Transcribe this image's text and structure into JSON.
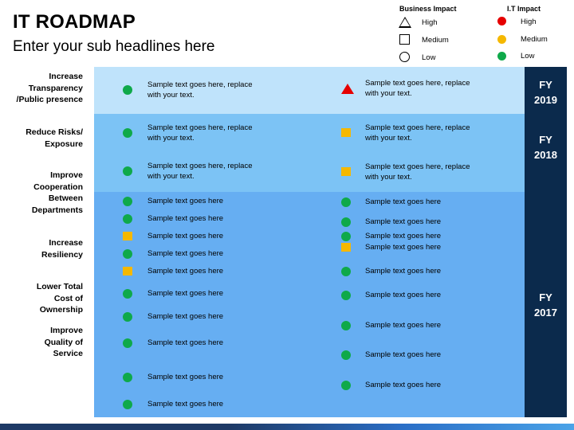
{
  "header": {
    "title": "IT ROADMAP",
    "subtitle": "Enter your sub headlines here"
  },
  "legend": {
    "business_title": "Business Impact",
    "it_title": "I.T Impact",
    "business_items": [
      {
        "label": "High",
        "icon": "triangle-outline-icon"
      },
      {
        "label": "Medium",
        "icon": "square-outline-icon"
      },
      {
        "label": "Low",
        "icon": "circle-outline-icon"
      }
    ],
    "it_items": [
      {
        "label": "High",
        "color": "#e60000"
      },
      {
        "label": "Medium",
        "color": "#f5b800"
      },
      {
        "label": "Low",
        "color": "#0fa94a"
      }
    ]
  },
  "colors": {
    "band_top": "#bfe3fb",
    "band_mid": "#7cc3f5",
    "band_low": "#66aef2",
    "fy_column": "#0b2a4c",
    "high": "#e60000",
    "medium": "#f5b800",
    "low": "#0fa94a"
  },
  "fiscal_years": [
    "FY\n2019",
    "FY\n2018",
    "FY\n2017"
  ],
  "fy_labels": [
    {
      "fy": "FY",
      "year": "2019"
    },
    {
      "fy": "FY",
      "year": "2018"
    },
    {
      "fy": "FY",
      "year": "2017"
    }
  ],
  "categories": [
    "Increase\nTransparency\n/Public presence",
    "Reduce Risks/\nExposure",
    "Improve\nCooperation\nBetween\nDepartments",
    "Increase\nResiliency",
    "Lower Total\nCost of\nOwnership",
    "Improve\nQuality of\nService"
  ],
  "left_items": [
    {
      "text": "Sample text goes here, replace with your text.",
      "shape": "circle"
    },
    {
      "text": "Sample text goes here, replace with your text.",
      "shape": "circle"
    },
    {
      "text": "Sample text goes here, replace with your text.",
      "shape": "circle"
    },
    {
      "text": "Sample text goes here",
      "shape": "circle"
    },
    {
      "text": "Sample text goes here",
      "shape": "circle"
    },
    {
      "text": "Sample text goes here",
      "shape": "square"
    },
    {
      "text": "Sample text goes here",
      "shape": "circle"
    },
    {
      "text": "Sample text goes here",
      "shape": "square"
    },
    {
      "text": "Sample text goes here",
      "shape": "circle"
    },
    {
      "text": "Sample text goes here",
      "shape": "circle"
    },
    {
      "text": "Sample text goes here",
      "shape": "circle"
    },
    {
      "text": "Sample text goes here",
      "shape": "circle"
    },
    {
      "text": "Sample text goes here",
      "shape": "circle"
    }
  ],
  "right_items": [
    {
      "text": "Sample text goes here, replace with your text.",
      "shape": "triangle"
    },
    {
      "text": "Sample text goes here, replace with your text.",
      "shape": "square"
    },
    {
      "text": "Sample text goes here, replace with your text.",
      "shape": "square"
    },
    {
      "text": "Sample text goes here",
      "shape": "circle"
    },
    {
      "text": "Sample text goes here",
      "shape": "circle"
    },
    {
      "text": "Sample text goes here",
      "shape": "circle"
    },
    {
      "text": "Sample text goes here",
      "shape": "square"
    },
    {
      "text": "Sample text goes here",
      "shape": "circle"
    },
    {
      "text": "Sample text goes here",
      "shape": "circle"
    },
    {
      "text": "Sample text goes here",
      "shape": "circle"
    },
    {
      "text": "Sample text goes here",
      "shape": "circle"
    },
    {
      "text": "Sample text goes here",
      "shape": "circle"
    }
  ]
}
